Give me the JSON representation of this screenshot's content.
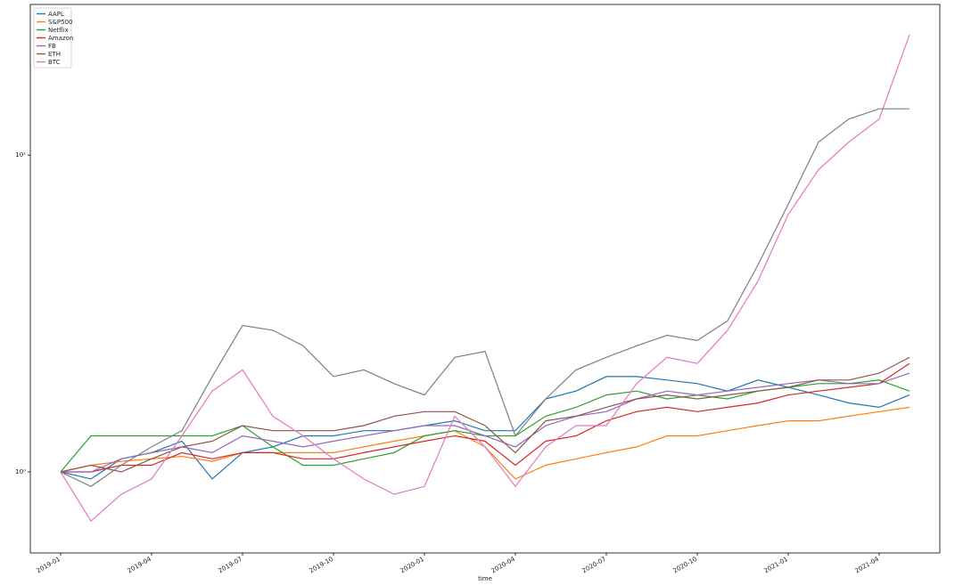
{
  "chart_data": {
    "type": "line",
    "x_label": "time",
    "log_y": true,
    "legend": "upper left",
    "xlim": [
      "2018-12",
      "2021-06"
    ],
    "xticks": [
      "2019-01",
      "2019-04",
      "2019-07",
      "2019-10",
      "2020-01",
      "2020-04",
      "2020-07",
      "2020-10",
      "2021-01",
      "2021-04"
    ],
    "ylim": [
      0.555,
      29.9
    ],
    "yticks": [
      {
        "value": 1,
        "label": "10⁰"
      },
      {
        "value": 10,
        "label": "10¹"
      }
    ],
    "x": [
      "2019-01",
      "2019-02",
      "2019-03",
      "2019-04",
      "2019-05",
      "2019-06",
      "2019-07",
      "2019-08",
      "2019-09",
      "2019-10",
      "2019-11",
      "2019-12",
      "2020-01",
      "2020-02",
      "2020-03",
      "2020-04",
      "2020-05",
      "2020-06",
      "2020-07",
      "2020-08",
      "2020-09",
      "2020-10",
      "2020-11",
      "2020-12",
      "2021-01",
      "2021-02",
      "2021-03",
      "2021-04",
      "2021-05"
    ],
    "series": [
      {
        "name": "AAPL",
        "color": "#1f77b4",
        "values": [
          1.0,
          0.95,
          1.1,
          1.15,
          1.25,
          0.95,
          1.15,
          1.2,
          1.3,
          1.3,
          1.35,
          1.35,
          1.4,
          1.45,
          1.35,
          1.35,
          1.7,
          1.8,
          2.0,
          2.0,
          1.95,
          1.9,
          1.8,
          1.95,
          1.85,
          1.75,
          1.65,
          1.6,
          1.75
        ]
      },
      {
        "name": "S&P500",
        "color": "#ff7f0e",
        "values": [
          1.0,
          1.05,
          1.08,
          1.1,
          1.12,
          1.08,
          1.15,
          1.15,
          1.15,
          1.15,
          1.2,
          1.25,
          1.3,
          1.35,
          1.2,
          0.95,
          1.05,
          1.1,
          1.15,
          1.2,
          1.3,
          1.3,
          1.35,
          1.4,
          1.45,
          1.45,
          1.5,
          1.55,
          1.6
        ]
      },
      {
        "name": "Netflix",
        "color": "#2ca02c",
        "values": [
          1.0,
          1.3,
          1.3,
          1.3,
          1.3,
          1.3,
          1.4,
          1.2,
          1.05,
          1.05,
          1.1,
          1.15,
          1.3,
          1.35,
          1.3,
          1.3,
          1.5,
          1.6,
          1.75,
          1.8,
          1.7,
          1.75,
          1.7,
          1.8,
          1.85,
          1.9,
          1.9,
          1.95,
          1.8
        ]
      },
      {
        "name": "Amazon",
        "color": "#d62728",
        "values": [
          1.0,
          1.0,
          1.05,
          1.05,
          1.15,
          1.1,
          1.15,
          1.15,
          1.1,
          1.1,
          1.15,
          1.2,
          1.25,
          1.3,
          1.25,
          1.05,
          1.25,
          1.3,
          1.45,
          1.55,
          1.6,
          1.55,
          1.6,
          1.65,
          1.75,
          1.8,
          1.85,
          1.9,
          2.2
        ]
      },
      {
        "name": "FB",
        "color": "#9467bd",
        "values": [
          1.0,
          1.0,
          1.1,
          1.15,
          1.2,
          1.15,
          1.3,
          1.25,
          1.2,
          1.25,
          1.3,
          1.35,
          1.4,
          1.4,
          1.3,
          1.2,
          1.4,
          1.5,
          1.55,
          1.7,
          1.8,
          1.75,
          1.8,
          1.85,
          1.9,
          1.95,
          1.9,
          1.9,
          2.05
        ]
      },
      {
        "name": "ETH",
        "color": "#8c564b",
        "values": [
          1.0,
          1.05,
          1.0,
          1.1,
          1.2,
          1.25,
          1.4,
          1.35,
          1.35,
          1.35,
          1.4,
          1.5,
          1.55,
          1.55,
          1.4,
          1.15,
          1.45,
          1.5,
          1.6,
          1.7,
          1.75,
          1.7,
          1.75,
          1.8,
          1.85,
          1.95,
          1.95,
          2.05,
          2.3
        ]
      },
      {
        "name": "BTC",
        "color": "#e377c2",
        "values": [
          1.0,
          0.7,
          0.85,
          0.95,
          1.3,
          1.8,
          2.1,
          1.5,
          1.3,
          1.1,
          0.95,
          0.85,
          0.9,
          1.5,
          1.2,
          0.9,
          1.2,
          1.4,
          1.4,
          1.9,
          2.3,
          2.2,
          2.8,
          4.0,
          6.5,
          9,
          11,
          13,
          24
        ]
      },
      {
        "color": "#7f7f7f",
        "values": [
          1.0,
          0.9,
          1.05,
          1.2,
          1.35,
          2.0,
          2.9,
          2.8,
          2.5,
          2.0,
          2.1,
          1.9,
          1.75,
          2.3,
          2.4,
          1.3,
          1.7,
          2.1,
          2.3,
          2.5,
          2.7,
          2.6,
          3.0,
          4.5,
          7,
          11,
          13,
          14,
          14
        ]
      }
    ]
  }
}
